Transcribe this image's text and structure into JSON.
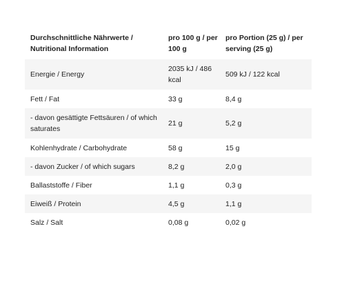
{
  "table": {
    "headers": [
      "Durchschnittliche Nährwerte / Nutritional Information",
      "pro 100 g / per 100 g",
      "pro Portion (25 g) / per serving (25 g)"
    ],
    "rows": [
      [
        "Energie / Energy",
        "2035 kJ / 486 kcal",
        "509 kJ / 122 kcal"
      ],
      [
        "Fett / Fat",
        "33 g",
        "8,4 g"
      ],
      [
        "- davon gesättigte Fettsäuren / of which saturates",
        "21 g",
        "5,2 g"
      ],
      [
        "Kohlenhydrate / Carbohydrate",
        "58 g",
        "15 g"
      ],
      [
        "- davon Zucker / of which sugars",
        "8,2 g",
        "2,0 g"
      ],
      [
        "Ballaststoffe / Fiber",
        "1,1 g",
        "0,3 g"
      ],
      [
        "Eiweiß / Protein",
        "4,5 g",
        "1,1 g"
      ],
      [
        "Salz / Salt",
        "0,08 g",
        "0,02 g"
      ]
    ]
  }
}
